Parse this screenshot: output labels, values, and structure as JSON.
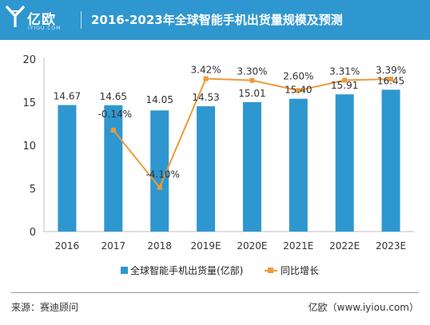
{
  "brand": {
    "logo_text": "亿欧",
    "logo_sub": "IYIOU.COM"
  },
  "header": {
    "title": "2016-2023年全球智能手机出货量规模及预测"
  },
  "legend": {
    "bar_label": "全球智能手机出货量(亿部)",
    "line_label": "同比增长"
  },
  "footer": {
    "source": "来源：赛迪顾问",
    "site": "亿欧（www.iyiou.com）"
  },
  "colors": {
    "header_bg": "#2f97cf",
    "bar": "#2f97cf",
    "line": "#ed9a3a",
    "axis": "#bfbfbf"
  },
  "chart_data": {
    "type": "bar",
    "title": "2016-2023年全球智能手机出货量规模及预测",
    "categories": [
      "2016",
      "2017",
      "2018",
      "2019E",
      "2020E",
      "2021E",
      "2022E",
      "2023E"
    ],
    "series": [
      {
        "name": "全球智能手机出货量(亿部)",
        "type": "bar",
        "values": [
          14.67,
          14.65,
          14.05,
          14.53,
          15.01,
          15.4,
          15.91,
          16.45
        ],
        "labels": [
          "14.67",
          "14.65",
          "14.05",
          "14.53",
          "15.01",
          "15.40",
          "15.91",
          "16.45"
        ]
      },
      {
        "name": "同比增长",
        "type": "line",
        "values": [
          null,
          -0.14,
          -4.1,
          3.42,
          3.3,
          2.6,
          3.31,
          3.39
        ],
        "unit": "%",
        "labels": [
          "",
          "-0.14%",
          "-4.10%",
          "3.42%",
          "3.30%",
          "2.60%",
          "3.31%",
          "3.39%"
        ]
      }
    ],
    "ylim": [
      0,
      20
    ],
    "yticks": [
      "0",
      "5",
      "10",
      "15",
      "20"
    ],
    "growth_axis_range": [
      -5,
      4
    ],
    "gridlines": false,
    "legend_position": "bottom"
  }
}
